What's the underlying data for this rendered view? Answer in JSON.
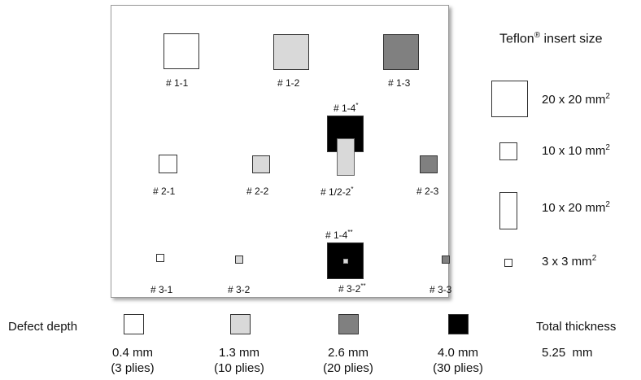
{
  "colors": {
    "white": "#ffffff",
    "light_gray": "#d9d9d9",
    "dark_gray": "#808080",
    "black": "#000000"
  },
  "specimens": {
    "row1": [
      "# 1-1",
      "# 1-2",
      "# 1-3"
    ],
    "row2_top_label": "# 1-4",
    "row2_top_mark": "*",
    "row2": [
      "# 2-1",
      "# 2-2",
      "# 1/2-2",
      "# 2-3"
    ],
    "row2_mid_mark": "*",
    "row3_top_label": "# 1-4",
    "row3_top_mark": "**",
    "row3": [
      "# 3-1",
      "# 3-2",
      "# 3-2",
      "# 3-3"
    ],
    "row3_mid_mark": "**"
  },
  "legend": {
    "title": "Teflon",
    "title_reg": "®",
    "title_rest": " insert size",
    "sizes": [
      {
        "label": "20 x 20 mm",
        "sup": "2"
      },
      {
        "label": "10 x 10 mm",
        "sup": "2"
      },
      {
        "label": "10 x 20 mm",
        "sup": "2"
      },
      {
        "label": "3 x 3 mm",
        "sup": "2"
      }
    ]
  },
  "depth": {
    "label": "Defect depth",
    "items": [
      {
        "mm": "0.4 mm",
        "plies": "(3 plies)",
        "color": "#ffffff"
      },
      {
        "mm": "1.3 mm",
        "plies": "(10 plies)",
        "color": "#d9d9d9"
      },
      {
        "mm": "2.6 mm",
        "plies": "(20 plies)",
        "color": "#808080"
      },
      {
        "mm": "4.0 mm",
        "plies": "(30 plies)",
        "color": "#000000"
      }
    ]
  },
  "thickness": {
    "label": "Total thickness",
    "value": "5.25  mm"
  }
}
